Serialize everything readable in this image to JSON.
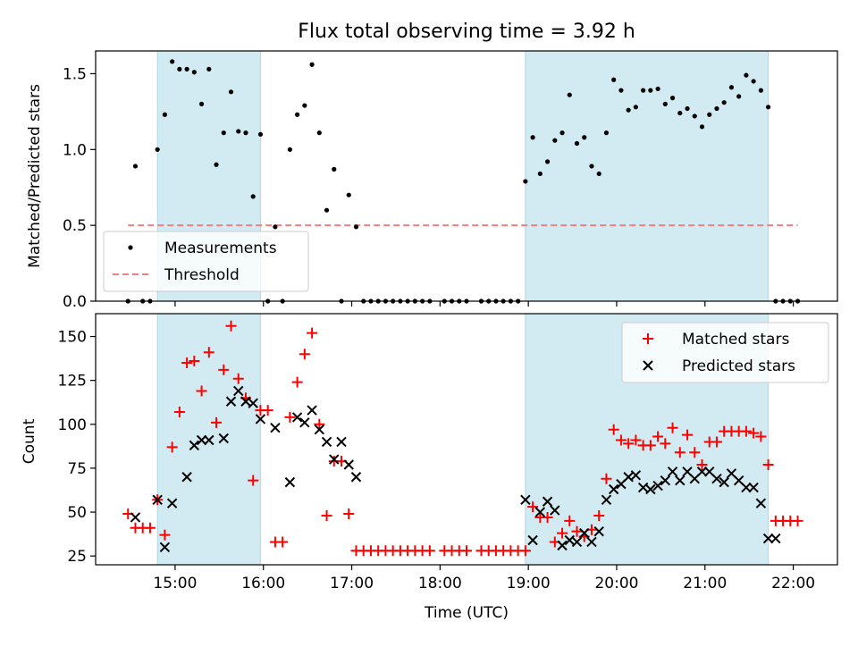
{
  "chart_data": [
    {
      "type": "scatter",
      "title": "Flux total observing time = 3.92 h",
      "xlabel": "",
      "ylabel": "Matched/Predicted stars",
      "xlim": [
        "14:06",
        "22:30"
      ],
      "ylim": [
        0,
        1.65
      ],
      "yticks": [
        0.0,
        0.5,
        1.0,
        1.5
      ],
      "ytick_labels": [
        "0.0",
        "0.5",
        "1.0",
        "1.5"
      ],
      "xticks": [
        "15:00",
        "16:00",
        "17:00",
        "18:00",
        "19:00",
        "20:00",
        "21:00",
        "22:00"
      ],
      "grid": false,
      "legend": "lower-left",
      "shaded_intervals": [
        [
          "14:48",
          "15:58"
        ],
        [
          "18:58",
          "21:43"
        ]
      ],
      "shade_color": "#add8e6",
      "series": [
        {
          "name": "Measurements",
          "color": "#000000",
          "marker": "dot",
          "x": [
            "14:28",
            "14:33",
            "14:38",
            "14:43",
            "14:48",
            "14:53",
            "14:58",
            "15:03",
            "15:08",
            "15:13",
            "15:18",
            "15:23",
            "15:28",
            "15:33",
            "15:38",
            "15:43",
            "15:48",
            "15:53",
            "15:58",
            "16:03",
            "16:08",
            "16:13",
            "16:18",
            "16:23",
            "16:28",
            "16:33",
            "16:38",
            "16:43",
            "16:48",
            "16:53",
            "16:58",
            "17:03",
            "17:08",
            "17:13",
            "17:18",
            "17:23",
            "17:28",
            "17:33",
            "17:38",
            "17:43",
            "17:48",
            "17:53",
            "18:03",
            "18:08",
            "18:13",
            "18:18",
            "18:28",
            "18:33",
            "18:38",
            "18:43",
            "18:48",
            "18:53",
            "18:58",
            "19:03",
            "19:08",
            "19:13",
            "19:18",
            "19:23",
            "19:28",
            "19:33",
            "19:38",
            "19:43",
            "19:48",
            "19:53",
            "19:58",
            "20:03",
            "20:08",
            "20:13",
            "20:18",
            "20:23",
            "20:28",
            "20:33",
            "20:38",
            "20:43",
            "20:48",
            "20:53",
            "20:58",
            "21:03",
            "21:08",
            "21:13",
            "21:18",
            "21:23",
            "21:28",
            "21:33",
            "21:38",
            "21:43",
            "21:48",
            "21:53",
            "21:58",
            "22:03"
          ],
          "y": [
            0.0,
            0.89,
            0.0,
            0.0,
            1.0,
            1.23,
            1.58,
            1.53,
            1.53,
            1.51,
            1.3,
            1.53,
            0.9,
            1.11,
            1.38,
            1.12,
            1.11,
            0.69,
            1.1,
            0.0,
            0.49,
            0.0,
            1.0,
            1.23,
            1.29,
            1.56,
            1.11,
            0.6,
            0.87,
            0.0,
            0.7,
            0.49,
            0.0,
            0.0,
            0.0,
            0.0,
            0.0,
            0.0,
            0.0,
            0.0,
            0.0,
            0.0,
            0.0,
            0.0,
            0.0,
            0.0,
            0.0,
            0.0,
            0.0,
            0.0,
            0.0,
            0.0,
            0.79,
            1.08,
            0.84,
            0.92,
            1.06,
            1.11,
            1.36,
            1.04,
            1.08,
            0.89,
            0.84,
            1.11,
            1.46,
            1.39,
            1.26,
            1.28,
            1.39,
            1.39,
            1.4,
            1.3,
            1.34,
            1.24,
            1.27,
            1.22,
            1.15,
            1.23,
            1.27,
            1.31,
            1.41,
            1.35,
            1.49,
            1.45,
            1.39,
            1.28,
            0.0,
            0.0,
            0.0,
            0.0
          ]
        },
        {
          "name": "Threshold",
          "color": "#f08080",
          "style": "dashed",
          "x": [
            "14:28",
            "22:03"
          ],
          "y": [
            0.5,
            0.5
          ]
        }
      ]
    },
    {
      "type": "scatter",
      "title": "",
      "xlabel": "Time (UTC)",
      "ylabel": "Count",
      "xlim": [
        "14:06",
        "22:30"
      ],
      "ylim": [
        20,
        163
      ],
      "yticks": [
        25,
        50,
        75,
        100,
        125,
        150
      ],
      "ytick_labels": [
        "25",
        "50",
        "75",
        "100",
        "125",
        "150"
      ],
      "xticks": [
        "15:00",
        "16:00",
        "17:00",
        "18:00",
        "19:00",
        "20:00",
        "21:00",
        "22:00"
      ],
      "xtick_labels": [
        "15:00",
        "16:00",
        "17:00",
        "18:00",
        "19:00",
        "20:00",
        "21:00",
        "22:00"
      ],
      "grid": false,
      "legend": "upper-right",
      "shaded_intervals": [
        [
          "14:48",
          "15:58"
        ],
        [
          "18:58",
          "21:43"
        ]
      ],
      "shade_color": "#add8e6",
      "series": [
        {
          "name": "Matched stars",
          "color": "#ff0000",
          "marker": "plus",
          "x": [
            "14:28",
            "14:33",
            "14:38",
            "14:43",
            "14:48",
            "14:53",
            "14:58",
            "15:03",
            "15:08",
            "15:13",
            "15:18",
            "15:23",
            "15:28",
            "15:33",
            "15:38",
            "15:43",
            "15:48",
            "15:53",
            "15:58",
            "16:03",
            "16:08",
            "16:13",
            "16:18",
            "16:23",
            "16:28",
            "16:33",
            "16:38",
            "16:43",
            "16:48",
            "16:53",
            "16:58",
            "17:03",
            "17:08",
            "17:13",
            "17:18",
            "17:23",
            "17:28",
            "17:33",
            "17:38",
            "17:43",
            "17:48",
            "17:53",
            "18:03",
            "18:08",
            "18:13",
            "18:18",
            "18:28",
            "18:33",
            "18:38",
            "18:43",
            "18:48",
            "18:53",
            "18:58",
            "19:03",
            "19:08",
            "19:13",
            "19:18",
            "19:23",
            "19:28",
            "19:33",
            "19:38",
            "19:43",
            "19:48",
            "19:53",
            "19:58",
            "20:03",
            "20:08",
            "20:13",
            "20:18",
            "20:23",
            "20:28",
            "20:33",
            "20:38",
            "20:43",
            "20:48",
            "20:53",
            "20:58",
            "21:03",
            "21:08",
            "21:13",
            "21:18",
            "21:23",
            "21:28",
            "21:33",
            "21:38",
            "21:43",
            "21:48",
            "21:53",
            "21:58",
            "22:03"
          ],
          "y": [
            49,
            41,
            41,
            41,
            57,
            37,
            87,
            107,
            135,
            136,
            119,
            141,
            101,
            131,
            156,
            126,
            115,
            68,
            108,
            108,
            33,
            33,
            104,
            124,
            140,
            152,
            100,
            48,
            79,
            79,
            49,
            28,
            28,
            28,
            28,
            28,
            28,
            28,
            28,
            28,
            28,
            28,
            28,
            28,
            28,
            28,
            28,
            28,
            28,
            28,
            28,
            28,
            28,
            53,
            47,
            47,
            33,
            38,
            45,
            39,
            36,
            40,
            48,
            69,
            97,
            91,
            89,
            91,
            88,
            88,
            93,
            89,
            98,
            84,
            94,
            84,
            77,
            90,
            90,
            96,
            96,
            96,
            96,
            95,
            93,
            77,
            45,
            45,
            45,
            45
          ]
        },
        {
          "name": "Predicted stars",
          "color": "#000000",
          "marker": "x",
          "x": [
            "14:33",
            "14:48",
            "14:53",
            "14:58",
            "15:08",
            "15:13",
            "15:18",
            "15:23",
            "15:33",
            "15:38",
            "15:43",
            "15:48",
            "15:53",
            "15:58",
            "16:08",
            "16:18",
            "16:23",
            "16:28",
            "16:33",
            "16:38",
            "16:43",
            "16:48",
            "16:53",
            "16:58",
            "17:03",
            "18:58",
            "19:03",
            "19:08",
            "19:13",
            "19:18",
            "19:23",
            "19:28",
            "19:33",
            "19:38",
            "19:43",
            "19:48",
            "19:53",
            "19:58",
            "20:03",
            "20:08",
            "20:13",
            "20:18",
            "20:23",
            "20:28",
            "20:33",
            "20:38",
            "20:43",
            "20:48",
            "20:53",
            "20:58",
            "21:03",
            "21:08",
            "21:13",
            "21:18",
            "21:23",
            "21:28",
            "21:33",
            "21:38",
            "21:43",
            "21:48"
          ],
          "y": [
            47,
            57,
            30,
            55,
            70,
            88,
            91,
            91,
            92,
            113,
            119,
            113,
            112,
            103,
            98,
            67,
            104,
            101,
            108,
            97,
            90,
            80,
            90,
            77,
            70,
            57,
            34,
            50,
            56,
            51,
            31,
            34,
            33,
            38,
            33,
            39,
            57,
            63,
            66,
            70,
            71,
            64,
            63,
            65,
            68,
            73,
            68,
            73,
            69,
            73,
            73,
            69,
            67,
            72,
            68,
            64,
            64,
            55,
            35,
            35
          ]
        }
      ]
    }
  ]
}
